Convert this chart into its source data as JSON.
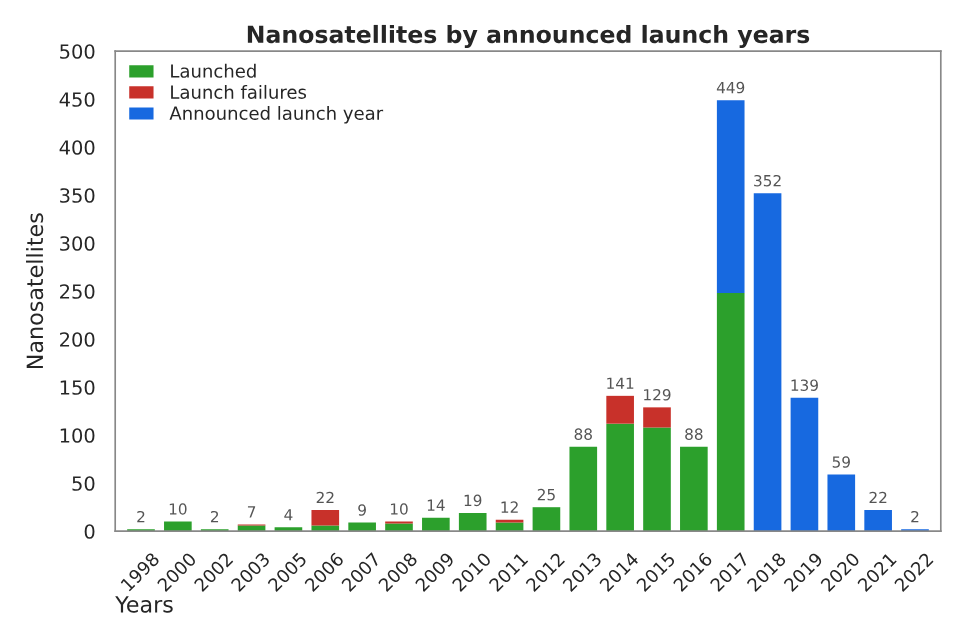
{
  "chart_data": {
    "type": "bar",
    "title": "Nanosatellites by announced launch years",
    "xlabel": "Years",
    "ylabel": "Nanosatellites",
    "categories": [
      "1998",
      "2000",
      "2002",
      "2003",
      "2005",
      "2006",
      "2007",
      "2008",
      "2009",
      "2010",
      "2011",
      "2012",
      "2013",
      "2014",
      "2015",
      "2016",
      "2017",
      "2018",
      "2019",
      "2020",
      "2021",
      "2022"
    ],
    "stacked": true,
    "series": [
      {
        "name": "Launched",
        "color": "#2ca02c",
        "values": [
          2,
          10,
          2,
          6,
          4,
          6,
          9,
          8,
          14,
          19,
          9,
          25,
          88,
          112,
          108,
          88,
          248,
          0,
          0,
          0,
          0,
          0
        ]
      },
      {
        "name": "Launch failures",
        "color": "#c8312a",
        "values": [
          0,
          0,
          0,
          1,
          0,
          16,
          0,
          2,
          0,
          0,
          3,
          0,
          0,
          29,
          21,
          0,
          0,
          0,
          0,
          0,
          0,
          0
        ]
      },
      {
        "name": "Announced launch year",
        "color": "#1769e0",
        "values": [
          0,
          0,
          0,
          0,
          0,
          0,
          0,
          0,
          0,
          0,
          0,
          0,
          0,
          0,
          0,
          0,
          201,
          352,
          139,
          59,
          22,
          2
        ]
      }
    ],
    "totals": [
      "2",
      "10",
      "2",
      "7",
      "4",
      "22",
      "9",
      "10",
      "14",
      "19",
      "12",
      "25",
      "88",
      "141",
      "129",
      "88",
      "449",
      "352",
      "139",
      "59",
      "22",
      "2"
    ],
    "ylim": [
      0,
      500
    ],
    "yticks": [
      0,
      50,
      100,
      150,
      200,
      250,
      300,
      350,
      400,
      450,
      500
    ],
    "legend": "top left",
    "grid": false
  }
}
